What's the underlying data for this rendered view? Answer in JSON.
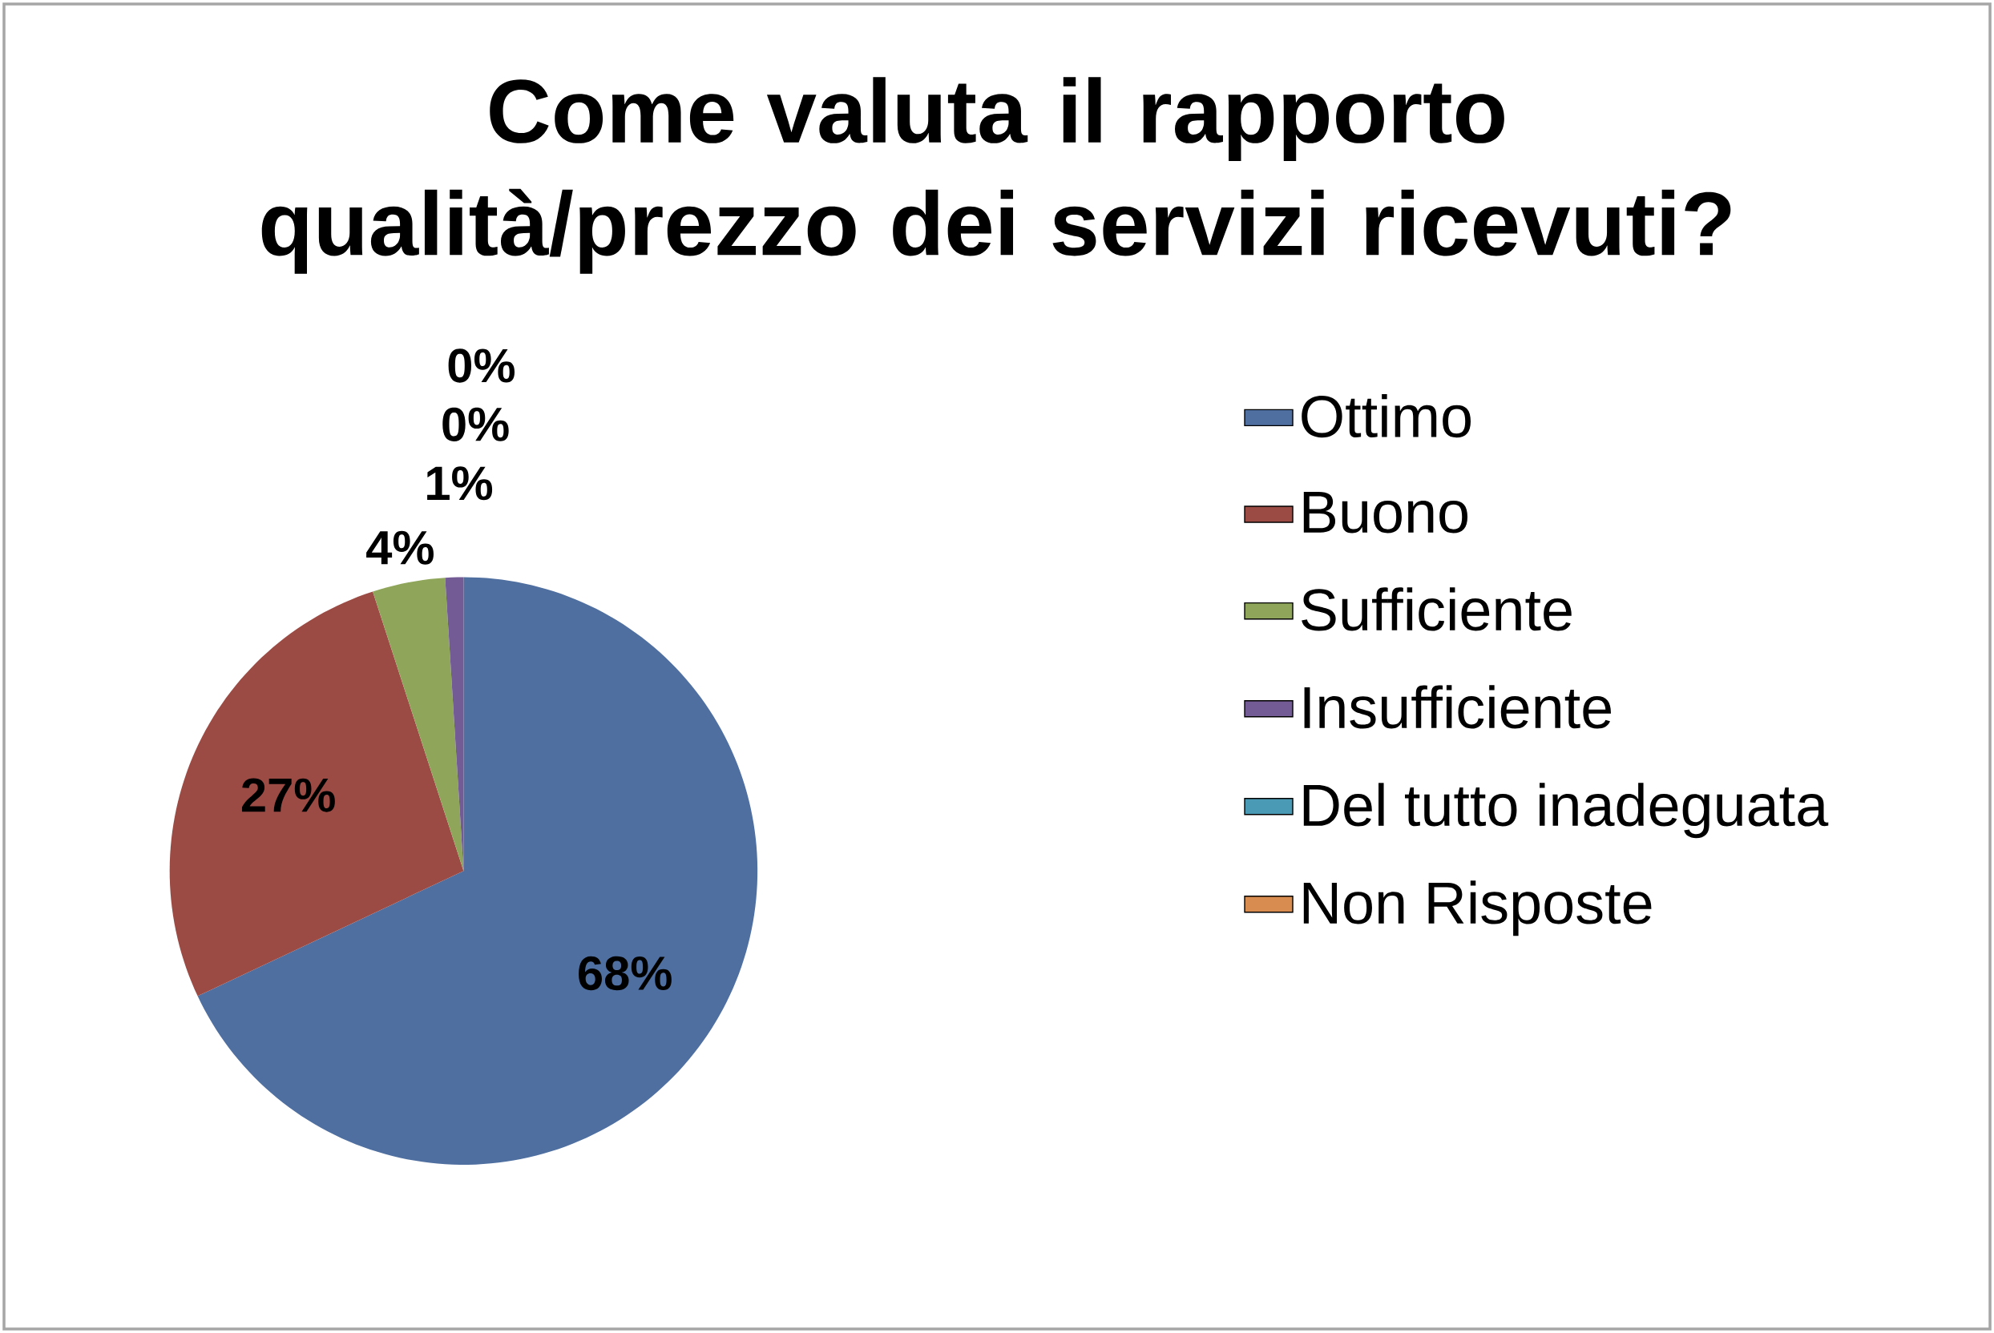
{
  "chart_data": {
    "type": "pie",
    "title": "Come valuta il rapporto qualità/prezzo dei servizi ricevuti?",
    "categories": [
      "Ottimo",
      "Buono",
      "Sufficiente",
      "Insufficiente",
      "Del tutto inadeguata",
      "Non Risposte"
    ],
    "values": [
      68,
      27,
      4,
      1,
      0,
      0
    ],
    "colors": [
      "#4f6fa0",
      "#9b4a44",
      "#8ea55a",
      "#735b95",
      "#4a9ab5",
      "#d98c4f"
    ],
    "value_labels": [
      "68%",
      "27%",
      "4%",
      "1%",
      "0%",
      "0%"
    ],
    "legend": "right"
  }
}
